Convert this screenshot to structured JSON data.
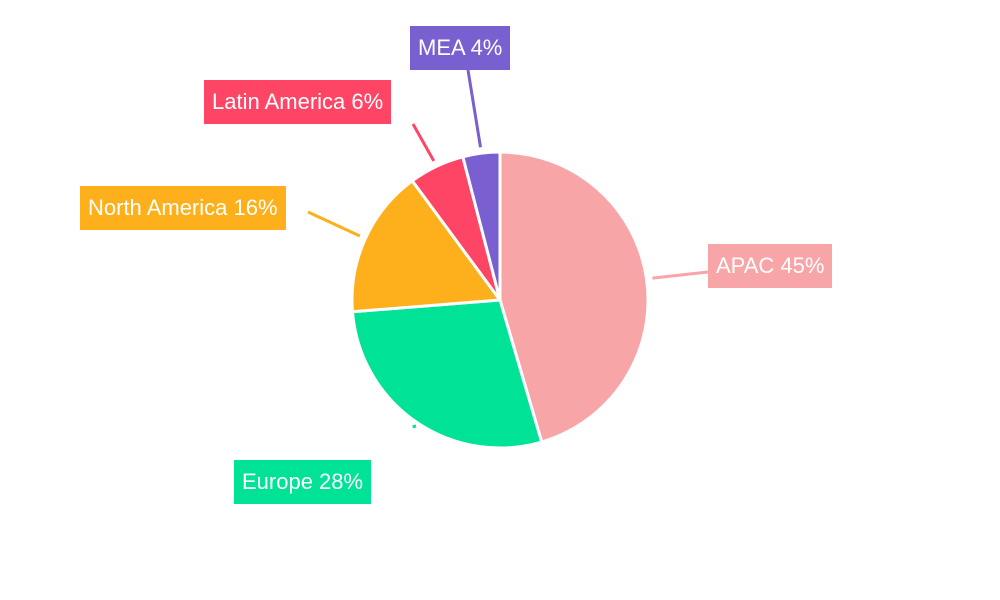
{
  "chart_data": {
    "type": "pie",
    "title": "",
    "categories": [
      "APAC",
      "Europe",
      "North America",
      "Latin America",
      "MEA"
    ],
    "values": [
      45,
      28,
      16,
      6,
      4
    ],
    "unit": "%",
    "colors": [
      "#f8a5a8",
      "#00e296",
      "#fdb01b",
      "#ff4565",
      "#7a5fd0"
    ],
    "labels": [
      "APAC 45%",
      "Europe 28%",
      "North America 16%",
      "Latin America 6%",
      "MEA 4%"
    ],
    "start_angle_deg": 0,
    "direction": "clockwise",
    "legend": "none",
    "label_style": "outside boxed callouts with leader lines"
  },
  "slices": [
    {
      "name": "APAC",
      "label": "APAC 45%",
      "color": "#f8a5a8"
    },
    {
      "name": "Europe",
      "label": "Europe 28%",
      "color": "#00e296"
    },
    {
      "name": "North America",
      "label": "North America 16%",
      "color": "#fdb01b"
    },
    {
      "name": "Latin America",
      "label": "Latin America 6%",
      "color": "#ff4565"
    },
    {
      "name": "MEA",
      "label": "MEA 4%",
      "color": "#7a5fd0"
    }
  ]
}
